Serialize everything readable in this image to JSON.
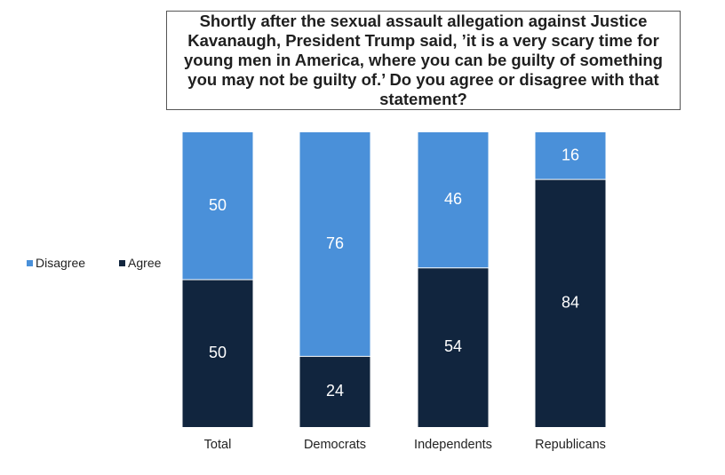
{
  "chart_data": {
    "type": "bar",
    "stacked": true,
    "title": "Shortly after the sexual assault allegation against Justice Kavanaugh, President Trump said, ’it is a very scary time for young men in America, where you can be guilty of something you may not be guilty of.’ Do you agree or disagree with that statement?",
    "categories": [
      "Total",
      "Democrats",
      "Independents",
      "Republicans"
    ],
    "series": [
      {
        "name": "Agree",
        "values": [
          50,
          24,
          54,
          84
        ],
        "color": "#11253e"
      },
      {
        "name": "Disagree",
        "values": [
          50,
          76,
          46,
          16
        ],
        "color": "#4a90d9"
      }
    ],
    "ylim": [
      0,
      100
    ],
    "grid": false,
    "legend_position": "left",
    "legend_order": [
      "Disagree",
      "Agree"
    ]
  }
}
